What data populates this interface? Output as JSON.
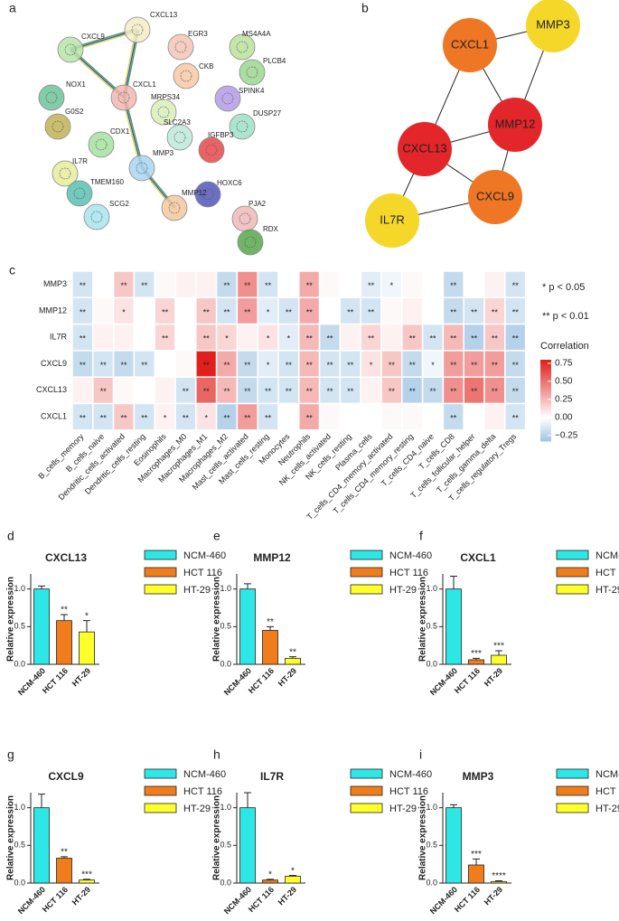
{
  "network_a": {
    "panel_label": "a",
    "nodes": [
      {
        "label": "CXCL13",
        "color": "#f3ecc8"
      },
      {
        "label": "CXCL9",
        "color": "#b7e4a8"
      },
      {
        "label": "EGR3",
        "color": "#f3c6b4"
      },
      {
        "label": "MS4A4A",
        "color": "#b9e29b"
      },
      {
        "label": "CKB",
        "color": "#f6c9a3"
      },
      {
        "label": "PLCB4",
        "color": "#9ed68f"
      },
      {
        "label": "NOX1",
        "color": "#6cc39a"
      },
      {
        "label": "CXCL1",
        "color": "#f2b7b0"
      },
      {
        "label": "MRPS34",
        "color": "#d9edb8"
      },
      {
        "label": "SPINK4",
        "color": "#b39be6"
      },
      {
        "label": "G0S2",
        "color": "#c2b256"
      },
      {
        "label": "SLC2A3",
        "color": "#bde8d8"
      },
      {
        "label": "DUSP27",
        "color": "#9edfc8"
      },
      {
        "label": "CDX1",
        "color": "#a6e0a0"
      },
      {
        "label": "IGFBP3",
        "color": "#e5484b"
      },
      {
        "label": "MMP3",
        "color": "#a8d6f2"
      },
      {
        "label": "IL7R",
        "color": "#e6ec9e"
      },
      {
        "label": "TMEM160",
        "color": "#5bbfb0"
      },
      {
        "label": "HOXC6",
        "color": "#5257b8"
      },
      {
        "label": "SCG2",
        "color": "#a8e4ee"
      },
      {
        "label": "PJA2",
        "color": "#efb8b8"
      },
      {
        "label": "MMP12",
        "color": "#f3c8a0"
      },
      {
        "label": "RDX",
        "color": "#57a84a"
      }
    ]
  },
  "network_b": {
    "panel_label": "b",
    "nodes": [
      {
        "label": "MMP3",
        "color": "#f5d72a"
      },
      {
        "label": "CXCL1",
        "color": "#ee7624"
      },
      {
        "label": "MMP12",
        "color": "#e2262a"
      },
      {
        "label": "CXCL13",
        "color": "#e2262a"
      },
      {
        "label": "CXCL9",
        "color": "#ee7624"
      },
      {
        "label": "IL7R",
        "color": "#f5d72a"
      }
    ]
  },
  "chart_data": [
    {
      "type": "heatmap",
      "panel_label": "c",
      "rows": [
        "MMP3",
        "MMP12",
        "IL7R",
        "CXCL9",
        "CXCL13",
        "CXCL1"
      ],
      "columns": [
        "B_cells_memory",
        "B_cells_naive",
        "Dendritic_cells_activated",
        "Dendritic_cells_resting",
        "Eosinophils",
        "Macrophages_M0",
        "Macrophages_M1",
        "Macrophages_M2",
        "Mast_cells_activated",
        "Mast_cells_resting",
        "Monocytes",
        "Neutrophils",
        "NK_cells_activated",
        "NK_cells_resting",
        "Plasma_cells",
        "T_cells_CD4_memory_activated",
        "T_cells_CD4_memory_resting",
        "T_cells_CD4_naive",
        "T_cells_CD8",
        "T_cells_follicular_helper",
        "T_cells_gamma_delta",
        "T_cells_regulatory_Tregs"
      ],
      "values": [
        [
          -0.15,
          0,
          0.2,
          -0.15,
          0.02,
          0.05,
          0.05,
          -0.2,
          0.4,
          -0.15,
          0,
          0.3,
          0.02,
          0,
          -0.1,
          -0.05,
          0.02,
          0,
          -0.2,
          0,
          0.05,
          -0.15
        ],
        [
          -0.15,
          0.02,
          0.1,
          0,
          0.15,
          0,
          0.2,
          -0.15,
          0.35,
          -0.1,
          -0.15,
          0.3,
          0,
          -0.15,
          -0.15,
          0.02,
          0.05,
          0,
          -0.2,
          -0.15,
          0.15,
          -0.15
        ],
        [
          -0.15,
          0.05,
          0.05,
          0,
          0.15,
          0,
          0.2,
          0.15,
          0.05,
          0.1,
          -0.1,
          0.25,
          -0.2,
          0.05,
          0.15,
          0.05,
          0.2,
          -0.15,
          0.25,
          -0.25,
          0.2,
          -0.25
        ],
        [
          -0.2,
          -0.15,
          -0.2,
          -0.15,
          0,
          0.02,
          0.8,
          0.3,
          -0.2,
          -0.1,
          -0.15,
          0.25,
          -0.15,
          -0.15,
          0.1,
          0.2,
          -0.2,
          -0.05,
          0.35,
          0.35,
          0.35,
          -0.2
        ],
        [
          0.05,
          0.2,
          0.02,
          0,
          0.05,
          -0.15,
          0.55,
          0.25,
          -0.2,
          -0.15,
          -0.15,
          0.25,
          -0.15,
          -0.15,
          0.05,
          0.2,
          -0.25,
          -0.2,
          0.4,
          0.5,
          0.4,
          -0.2
        ],
        [
          -0.15,
          -0.15,
          0.2,
          -0.15,
          0.05,
          -0.15,
          0.1,
          -0.25,
          0.35,
          -0.15,
          0,
          0.3,
          0.02,
          0,
          0,
          0.02,
          0.02,
          0,
          -0.2,
          0,
          0.05,
          -0.15
        ]
      ],
      "annotations": [
        [
          "**",
          null,
          "**",
          "**",
          null,
          null,
          null,
          "**",
          "**",
          "**",
          null,
          "**",
          null,
          null,
          "**",
          "*",
          null,
          null,
          "**",
          null,
          null,
          "**"
        ],
        [
          "**",
          null,
          "*",
          null,
          "**",
          null,
          "**",
          "**",
          "**",
          "*",
          "**",
          "**",
          null,
          "**",
          "**",
          null,
          null,
          null,
          "**",
          "**",
          "**",
          "**"
        ],
        [
          "**",
          null,
          null,
          null,
          "**",
          null,
          "**",
          "*",
          null,
          "*",
          "*",
          "**",
          "**",
          null,
          "**",
          null,
          "**",
          "**",
          "**",
          "**",
          "**",
          "**"
        ],
        [
          "**",
          "**",
          "**",
          "**",
          null,
          null,
          "**",
          "**",
          "**",
          "*",
          "**",
          "**",
          "**",
          "**",
          "*",
          "**",
          "**",
          "*",
          "**",
          "**",
          "**",
          "**"
        ],
        [
          null,
          "**",
          null,
          null,
          null,
          "**",
          "**",
          "**",
          "**",
          "**",
          "**",
          "**",
          "**",
          "**",
          null,
          "**",
          "**",
          "**",
          "**",
          "**",
          "**",
          "**"
        ],
        [
          "**",
          "**",
          "**",
          "**",
          "*",
          "**",
          "*",
          "**",
          "**",
          "**",
          null,
          "**",
          null,
          null,
          null,
          null,
          null,
          null,
          "**",
          null,
          null,
          "**"
        ]
      ],
      "legend_notes": [
        "* p < 0.05",
        "** p < 0.01"
      ],
      "colorbar_title": "Correlation",
      "zlim": [
        -0.33,
        0.8
      ],
      "zticks": [
        {
          "value": -0.25,
          "label": "−0.25"
        },
        {
          "value": 0,
          "label": "0.00"
        },
        0.25,
        {
          "value": 0.5,
          "label": "0.50"
        },
        0.75
      ],
      "colors": {
        "low": "#9ec4e3",
        "mid": "#ffffff",
        "high": "#e0201c"
      }
    },
    {
      "type": "bar",
      "panel_label": "d",
      "title": "CXCL13",
      "y_label": "Relative expression",
      "categories": [
        "NCM-460",
        "HCT 116",
        "HT-29"
      ],
      "values": [
        1.0,
        0.58,
        0.43
      ],
      "errors": [
        0.04,
        0.08,
        0.15
      ],
      "annotations": [
        null,
        "**",
        "*"
      ],
      "colors": [
        "#2de6e6",
        "#f07c1c",
        "#ffff2a"
      ],
      "ylim": [
        0,
        1.2
      ],
      "yticks": [
        {
          "value": 0,
          "label": "0.0"
        },
        0.5,
        {
          "value": 1,
          "label": "1.0"
        }
      ]
    },
    {
      "type": "bar",
      "panel_label": "e",
      "title": "MMP12",
      "y_label": "Relative expression",
      "categories": [
        "NCM-460",
        "HCT 116",
        "HT-29"
      ],
      "values": [
        1.0,
        0.45,
        0.08
      ],
      "errors": [
        0.07,
        0.05,
        0.02
      ],
      "annotations": [
        null,
        "**",
        "**"
      ],
      "colors": [
        "#2de6e6",
        "#f07c1c",
        "#ffff2a"
      ],
      "ylim": [
        0,
        1.2
      ],
      "yticks": [
        {
          "value": 0,
          "label": "0.0"
        },
        0.5,
        {
          "value": 1,
          "label": "1.0"
        }
      ]
    },
    {
      "type": "bar",
      "panel_label": "f",
      "title": "CXCL1",
      "y_label": "Relative expression",
      "categories": [
        "NCM-460",
        "HCT 116",
        "HT-29"
      ],
      "values": [
        1.0,
        0.06,
        0.12
      ],
      "errors": [
        0.17,
        0.02,
        0.06
      ],
      "annotations": [
        null,
        "***",
        "***"
      ],
      "colors": [
        "#2de6e6",
        "#f07c1c",
        "#ffff2a"
      ],
      "ylim": [
        0,
        1.2
      ],
      "yticks": [
        {
          "value": 0,
          "label": "0.0"
        },
        0.5,
        {
          "value": 1,
          "label": "1.0"
        }
      ]
    },
    {
      "type": "bar",
      "panel_label": "g",
      "title": "CXCL9",
      "y_label": "Relative expression",
      "categories": [
        "NCM-460",
        "HCT 116",
        "HT-29"
      ],
      "values": [
        1.0,
        0.33,
        0.04
      ],
      "errors": [
        0.18,
        0.02,
        0.01
      ],
      "annotations": [
        null,
        "**",
        "***"
      ],
      "colors": [
        "#2de6e6",
        "#f07c1c",
        "#ffff2a"
      ],
      "ylim": [
        0,
        1.2
      ],
      "yticks": [
        {
          "value": 0,
          "label": "0.0"
        },
        0.5,
        {
          "value": 1,
          "label": "1.0"
        }
      ]
    },
    {
      "type": "bar",
      "panel_label": "h",
      "title": "IL7R",
      "y_label": "Relative expression",
      "categories": [
        "NCM-460",
        "HCT 116",
        "HT-29"
      ],
      "values": [
        1.0,
        0.04,
        0.09
      ],
      "errors": [
        0.2,
        0.01,
        0.01
      ],
      "annotations": [
        null,
        "*",
        "*"
      ],
      "colors": [
        "#2de6e6",
        "#f07c1c",
        "#ffff2a"
      ],
      "ylim": [
        0,
        1.2
      ],
      "yticks": [
        {
          "value": 0,
          "label": "0.0"
        },
        0.5,
        {
          "value": 1,
          "label": "1.0"
        }
      ]
    },
    {
      "type": "bar",
      "panel_label": "i",
      "title": "MMP3",
      "y_label": "Relative expression",
      "categories": [
        "NCM-460",
        "HCT 116",
        "HT-29"
      ],
      "values": [
        1.0,
        0.24,
        0.02
      ],
      "errors": [
        0.04,
        0.08,
        0.01
      ],
      "annotations": [
        null,
        "***",
        "****"
      ],
      "colors": [
        "#2de6e6",
        "#f07c1c",
        "#ffff2a"
      ],
      "ylim": [
        0,
        1.2
      ],
      "yticks": [
        {
          "value": 0,
          "label": "0.0"
        },
        0.5,
        {
          "value": 1,
          "label": "1.0"
        }
      ]
    }
  ]
}
